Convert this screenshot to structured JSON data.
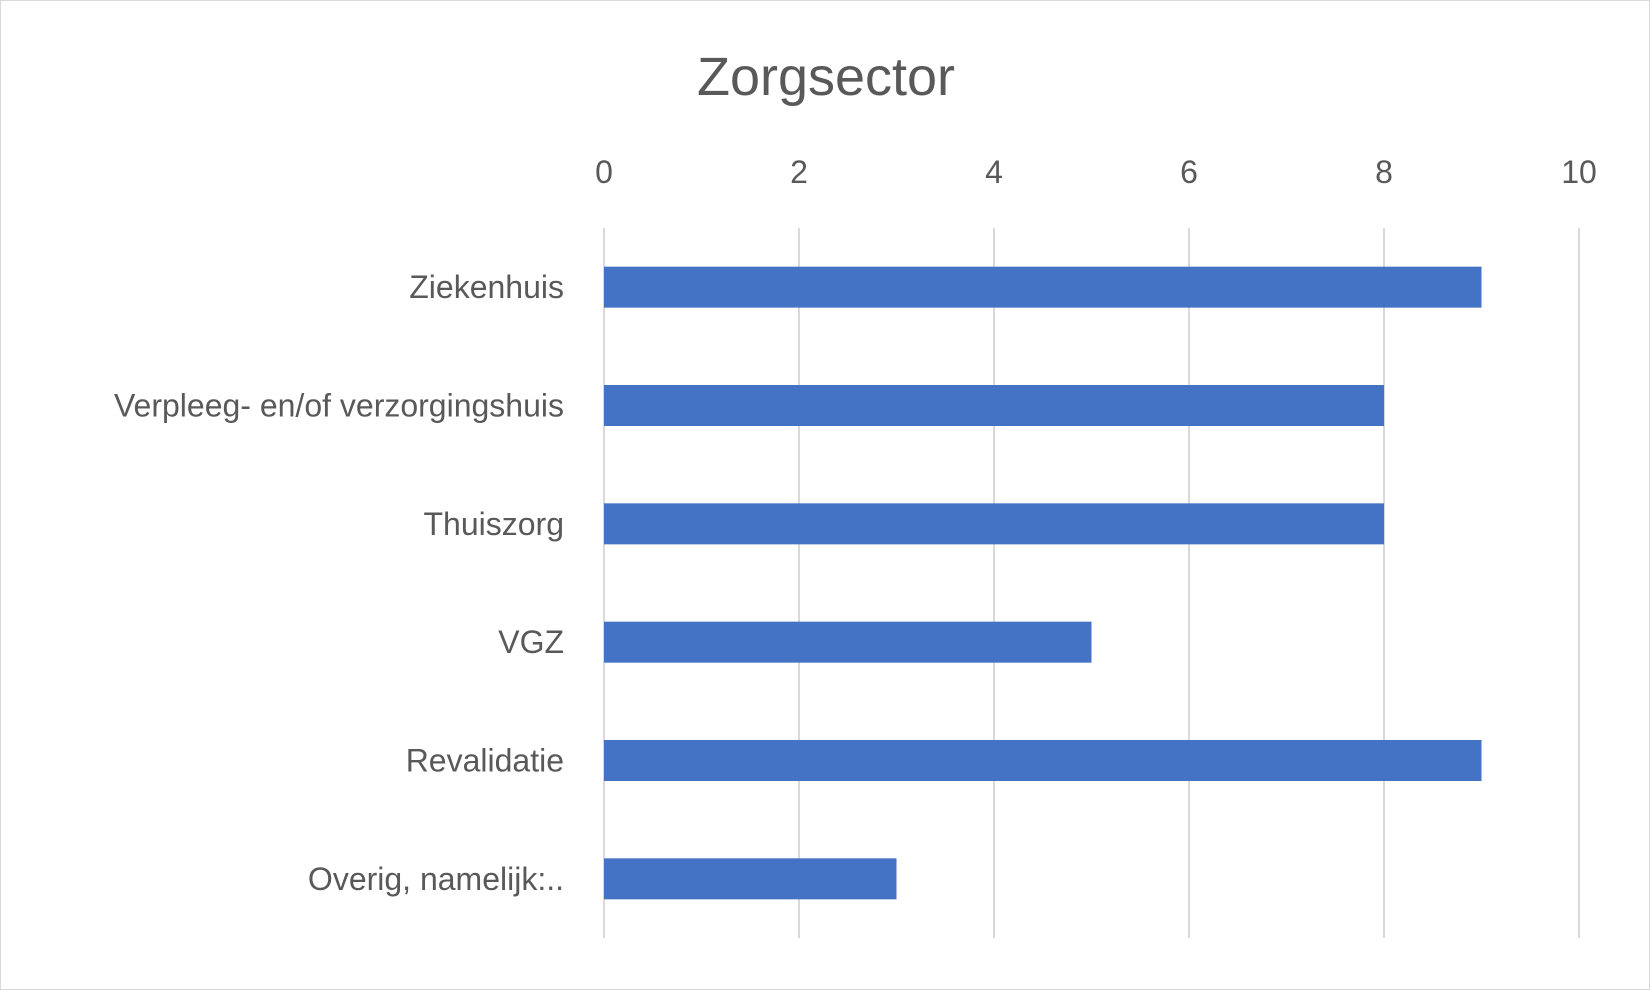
{
  "chart_data": {
    "type": "bar",
    "orientation": "horizontal",
    "title": "Zorgsector",
    "xlabel": "",
    "ylabel": "",
    "xlim": [
      0,
      10
    ],
    "xticks": [
      0,
      2,
      4,
      6,
      8,
      10
    ],
    "tick_position": "top",
    "grid": true,
    "categories": [
      "Ziekenhuis",
      "Verpleeg- en/of verzorgingshuis",
      "Thuiszorg",
      "VGZ",
      "Revalidatie",
      "Overig, namelijk:.."
    ],
    "values": [
      9,
      8,
      8,
      5,
      9,
      3
    ],
    "colors": {
      "bar": "#4472c4",
      "grid": "#d9d9d9",
      "text": "#595959"
    }
  }
}
